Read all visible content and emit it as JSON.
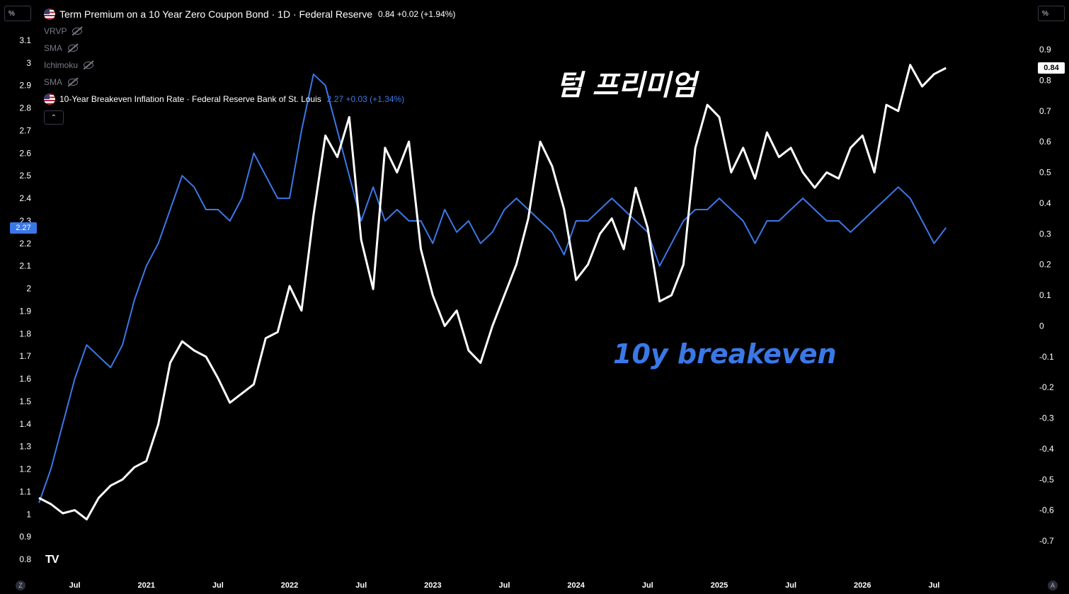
{
  "chart_data": {
    "type": "line",
    "series": [
      {
        "name": "Term Premium on a 10 Year Zero Coupon Bond · 1D · Federal Reserve",
        "color": "#ffffff",
        "axis": "right",
        "x": [
          "2020-04",
          "2020-05",
          "2020-06",
          "2020-07",
          "2020-08",
          "2020-09",
          "2020-10",
          "2020-11",
          "2020-12",
          "2021-01",
          "2021-02",
          "2021-03",
          "2021-04",
          "2021-05",
          "2021-06",
          "2021-07",
          "2021-08",
          "2021-09",
          "2021-10",
          "2021-11",
          "2021-12",
          "2022-01",
          "2022-02",
          "2022-03",
          "2022-04",
          "2022-05",
          "2022-06",
          "2022-07",
          "2022-08",
          "2022-09",
          "2022-10",
          "2022-11",
          "2022-12",
          "2023-01",
          "2023-02",
          "2023-03",
          "2023-04",
          "2023-05",
          "2023-06",
          "2023-07",
          "2023-08",
          "2023-09",
          "2023-10",
          "2023-11",
          "2023-12",
          "2024-01",
          "2024-02",
          "2024-03",
          "2024-04",
          "2024-05",
          "2024-06",
          "2024-07",
          "2024-08",
          "2024-09",
          "2024-10",
          "2024-11",
          "2024-12",
          "2025-01",
          "2025-02",
          "2025-03",
          "2025-04",
          "2025-05",
          "2025-06",
          "2025-07",
          "2025-08",
          "2025-09",
          "2025-10",
          "2025-11",
          "2025-12",
          "2026-01",
          "2026-02",
          "2026-03",
          "2026-04",
          "2026-05",
          "2026-06",
          "2026-07",
          "2026-08"
        ],
        "values": [
          -0.56,
          -0.58,
          -0.61,
          -0.6,
          -0.63,
          -0.56,
          -0.52,
          -0.5,
          -0.46,
          -0.44,
          -0.32,
          -0.12,
          -0.05,
          -0.08,
          -0.1,
          -0.17,
          -0.25,
          -0.22,
          -0.19,
          -0.04,
          -0.02,
          0.13,
          0.05,
          0.36,
          0.62,
          0.55,
          0.68,
          0.28,
          0.12,
          0.58,
          0.5,
          0.6,
          0.25,
          0.1,
          0.0,
          0.05,
          -0.08,
          -0.12,
          0.0,
          0.1,
          0.2,
          0.35,
          0.6,
          0.52,
          0.38,
          0.15,
          0.2,
          0.3,
          0.35,
          0.25,
          0.45,
          0.32,
          0.08,
          0.1,
          0.2,
          0.58,
          0.72,
          0.68,
          0.5,
          0.58,
          0.48,
          0.63,
          0.55,
          0.58,
          0.5,
          0.45,
          0.5,
          0.48,
          0.58,
          0.62,
          0.5,
          0.72,
          0.7,
          0.85,
          0.78,
          0.82,
          0.84
        ]
      },
      {
        "name": "10-Year Breakeven Inflation Rate · Federal Reserve Bank of St. Louis",
        "color": "#3b78e7",
        "axis": "left",
        "x": [
          "2020-04",
          "2020-05",
          "2020-06",
          "2020-07",
          "2020-08",
          "2020-09",
          "2020-10",
          "2020-11",
          "2020-12",
          "2021-01",
          "2021-02",
          "2021-03",
          "2021-04",
          "2021-05",
          "2021-06",
          "2021-07",
          "2021-08",
          "2021-09",
          "2021-10",
          "2021-11",
          "2021-12",
          "2022-01",
          "2022-02",
          "2022-03",
          "2022-04",
          "2022-05",
          "2022-06",
          "2022-07",
          "2022-08",
          "2022-09",
          "2022-10",
          "2022-11",
          "2022-12",
          "2023-01",
          "2023-02",
          "2023-03",
          "2023-04",
          "2023-05",
          "2023-06",
          "2023-07",
          "2023-08",
          "2023-09",
          "2023-10",
          "2023-11",
          "2023-12",
          "2024-01",
          "2024-02",
          "2024-03",
          "2024-04",
          "2024-05",
          "2024-06",
          "2024-07",
          "2024-08",
          "2024-09",
          "2024-10",
          "2024-11",
          "2024-12",
          "2025-01",
          "2025-02",
          "2025-03",
          "2025-04",
          "2025-05",
          "2025-06",
          "2025-07",
          "2025-08",
          "2025-09",
          "2025-10",
          "2025-11",
          "2025-12",
          "2026-01",
          "2026-02",
          "2026-03",
          "2026-04",
          "2026-05",
          "2026-06",
          "2026-07",
          "2026-08"
        ],
        "values": [
          1.05,
          1.2,
          1.4,
          1.6,
          1.75,
          1.7,
          1.65,
          1.75,
          1.95,
          2.1,
          2.2,
          2.35,
          2.5,
          2.45,
          2.35,
          2.35,
          2.3,
          2.4,
          2.6,
          2.5,
          2.4,
          2.4,
          2.7,
          2.95,
          2.9,
          2.7,
          2.5,
          2.3,
          2.45,
          2.3,
          2.35,
          2.3,
          2.3,
          2.2,
          2.35,
          2.25,
          2.3,
          2.2,
          2.25,
          2.35,
          2.4,
          2.35,
          2.3,
          2.25,
          2.15,
          2.3,
          2.3,
          2.35,
          2.4,
          2.35,
          2.3,
          2.25,
          2.1,
          2.2,
          2.3,
          2.35,
          2.35,
          2.4,
          2.35,
          2.3,
          2.2,
          2.3,
          2.3,
          2.35,
          2.4,
          2.35,
          2.3,
          2.3,
          2.25,
          2.3,
          2.35,
          2.4,
          2.45,
          2.4,
          2.3,
          2.2,
          2.27
        ]
      }
    ],
    "left_axis": {
      "unit": "%",
      "ticks": [
        "0.8",
        "0.9",
        "1",
        "1.1",
        "1.2",
        "1.3",
        "1.4",
        "1.5",
        "1.6",
        "1.7",
        "1.8",
        "1.9",
        "2",
        "2.1",
        "2.2",
        "2.3",
        "2.4",
        "2.5",
        "2.6",
        "2.7",
        "2.8",
        "2.9",
        "3",
        "3.1"
      ],
      "ylim": [
        0.8,
        3.1
      ]
    },
    "right_axis": {
      "unit": "%",
      "ticks": [
        "-0.7",
        "-0.6",
        "-0.5",
        "-0.4",
        "-0.3",
        "-0.2",
        "-0.1",
        "0",
        "0.1",
        "0.2",
        "0.3",
        "0.4",
        "0.5",
        "0.6",
        "0.7",
        "0.8",
        "0.9"
      ],
      "ylim": [
        -0.7,
        0.9
      ]
    },
    "x_ticks": [
      {
        "label": "Jul",
        "date": "2020-07"
      },
      {
        "label": "2021",
        "date": "2021-01"
      },
      {
        "label": "Jul",
        "date": "2021-07"
      },
      {
        "label": "2022",
        "date": "2022-01"
      },
      {
        "label": "Jul",
        "date": "2022-07"
      },
      {
        "label": "2023",
        "date": "2023-01"
      },
      {
        "label": "Jul",
        "date": "2023-07"
      },
      {
        "label": "2024",
        "date": "2024-01"
      },
      {
        "label": "Jul",
        "date": "2024-07"
      },
      {
        "label": "2025",
        "date": "2025-01"
      },
      {
        "label": "Jul",
        "date": "2025-07"
      },
      {
        "label": "2026",
        "date": "2026-01"
      },
      {
        "label": "Jul",
        "date": "2026-07"
      }
    ],
    "x_range": [
      "2020-04",
      "2026-10"
    ],
    "grid": false,
    "annotations": [
      {
        "text": "텀 프리미엄",
        "color": "#ffffff"
      },
      {
        "text": "10y breakeven",
        "color": "#3b78e7"
      }
    ]
  },
  "header": {
    "title": "Term Premium on a 10 Year Zero Coupon Bond · 1D · Federal Reserve",
    "value": "0.84 +0.02 (+1.94%)",
    "indicators": [
      "VRVP",
      "SMA",
      "Ichimoku",
      "SMA"
    ],
    "second_series_title": "10-Year Breakeven Inflation Rate · Federal Reserve Bank of St. Louis",
    "second_series_value": "2.27 +0.03 (+1.34%)"
  },
  "left_scale_label": "%",
  "right_scale_label": "%",
  "left_price_badge": "2.27",
  "right_price_badge": "0.84",
  "logo_text": "TV",
  "bottom_left_button": "Z",
  "bottom_right_button": "A"
}
